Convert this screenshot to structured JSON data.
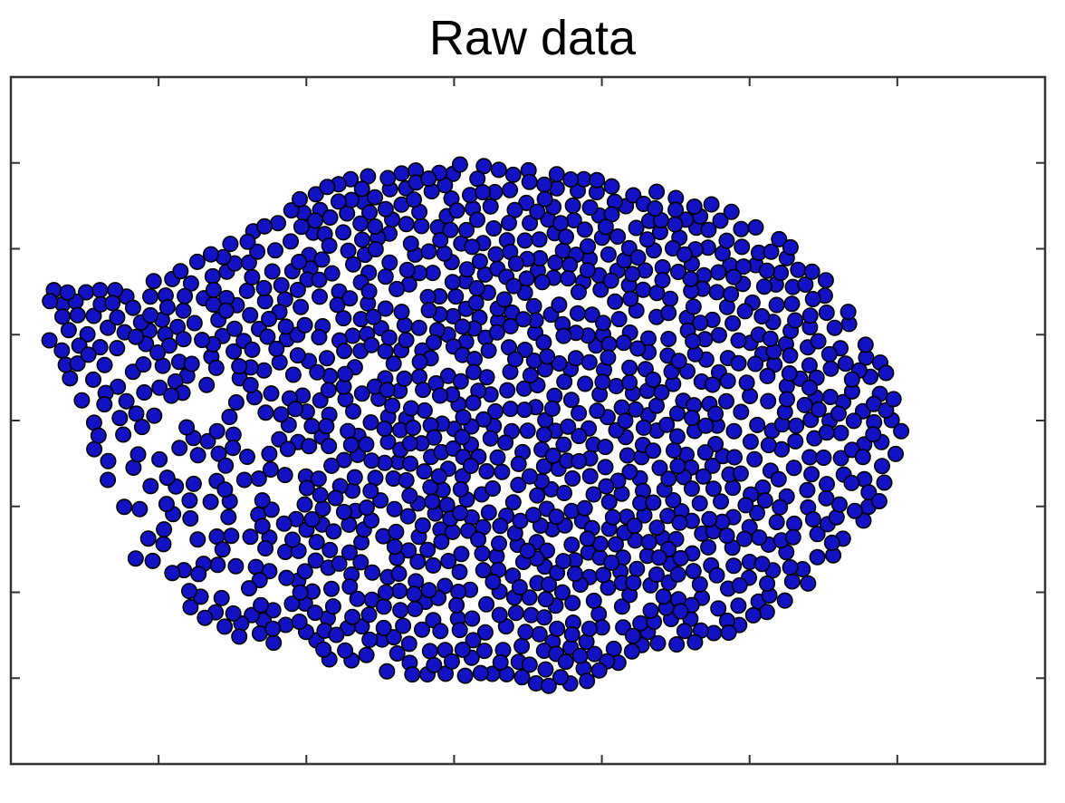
{
  "chart_data": {
    "type": "scatter",
    "title": "Raw data",
    "xlabel": "",
    "ylabel": "",
    "xlim": [
      0,
      7
    ],
    "ylim": [
      0,
      8
    ],
    "xticks": [
      1,
      2,
      3,
      4,
      5,
      6
    ],
    "yticks": [
      1,
      2,
      3,
      4,
      5,
      6,
      7
    ],
    "tick_labels_shown": false,
    "grid": false,
    "legend": "none",
    "marker_color": "#1010c8",
    "marker_edge_color": "#000000",
    "points_approx_count": 1400,
    "region_summary": {
      "x_range": [
        0.25,
        6.05
      ],
      "y_range": [
        1.0,
        7.0
      ],
      "dense_core_center": [
        3.8,
        4.1
      ],
      "left_dense_cluster": {
        "x": [
          0.25,
          1.4
        ],
        "y": [
          4.8,
          5.5
        ]
      },
      "sparse_region": {
        "x": [
          0.5,
          2.0
        ],
        "y": [
          1.8,
          4.6
        ]
      }
    }
  },
  "colors": {
    "point_fill": "#1212c4",
    "point_stroke": "#000000",
    "axes": "#333333"
  }
}
